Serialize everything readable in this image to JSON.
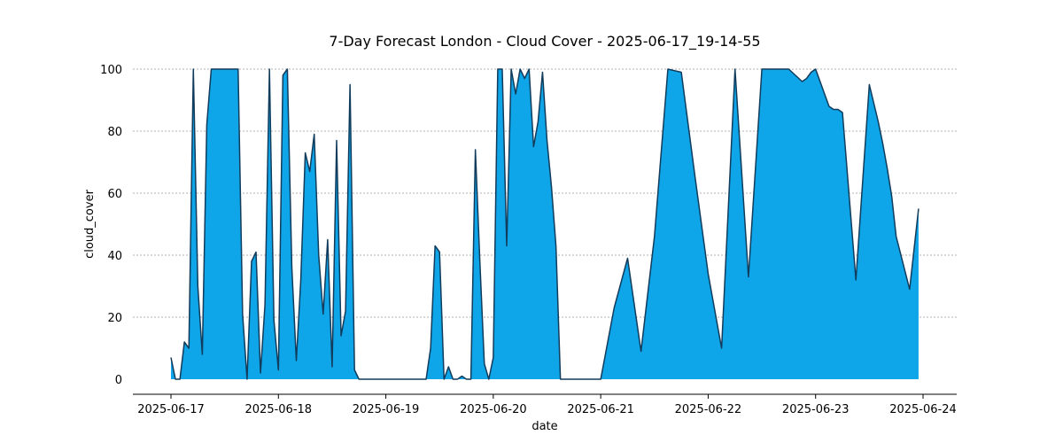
{
  "chart_data": {
    "type": "area",
    "title": "7-Day Forecast London - Cloud Cover - 2025-06-17_19-14-55",
    "xlabel": "date",
    "ylabel": "cloud_cover",
    "ylim": [
      0,
      100
    ],
    "yticks": [
      0,
      20,
      40,
      60,
      80,
      100
    ],
    "xlim": [
      "2025-06-17T00:00",
      "2025-06-24T00:00"
    ],
    "xticks": [
      "2025-06-17",
      "2025-06-18",
      "2025-06-19",
      "2025-06-20",
      "2025-06-21",
      "2025-06-22",
      "2025-06-23",
      "2025-06-24"
    ],
    "grid": "y",
    "legend": "none",
    "colors": {
      "fill": "#0ea5e9",
      "line": "#123c5c",
      "grid": "#999999"
    },
    "x": [
      "2025-06-17T00:00",
      "2025-06-17T01:00",
      "2025-06-17T02:00",
      "2025-06-17T03:00",
      "2025-06-17T04:00",
      "2025-06-17T05:00",
      "2025-06-17T06:00",
      "2025-06-17T07:00",
      "2025-06-17T08:00",
      "2025-06-17T09:00",
      "2025-06-17T10:00",
      "2025-06-17T11:00",
      "2025-06-17T12:00",
      "2025-06-17T13:00",
      "2025-06-17T14:00",
      "2025-06-17T15:00",
      "2025-06-17T16:00",
      "2025-06-17T17:00",
      "2025-06-17T18:00",
      "2025-06-17T19:00",
      "2025-06-17T20:00",
      "2025-06-17T21:00",
      "2025-06-17T22:00",
      "2025-06-17T23:00",
      "2025-06-18T00:00",
      "2025-06-18T01:00",
      "2025-06-18T02:00",
      "2025-06-18T03:00",
      "2025-06-18T04:00",
      "2025-06-18T05:00",
      "2025-06-18T06:00",
      "2025-06-18T07:00",
      "2025-06-18T08:00",
      "2025-06-18T09:00",
      "2025-06-18T10:00",
      "2025-06-18T11:00",
      "2025-06-18T12:00",
      "2025-06-18T13:00",
      "2025-06-18T14:00",
      "2025-06-18T15:00",
      "2025-06-18T16:00",
      "2025-06-18T17:00",
      "2025-06-18T18:00",
      "2025-06-18T19:00",
      "2025-06-18T20:00",
      "2025-06-18T21:00",
      "2025-06-18T22:00",
      "2025-06-18T23:00",
      "2025-06-19T00:00",
      "2025-06-19T01:00",
      "2025-06-19T02:00",
      "2025-06-19T03:00",
      "2025-06-19T04:00",
      "2025-06-19T05:00",
      "2025-06-19T06:00",
      "2025-06-19T07:00",
      "2025-06-19T08:00",
      "2025-06-19T09:00",
      "2025-06-19T10:00",
      "2025-06-19T11:00",
      "2025-06-19T12:00",
      "2025-06-19T13:00",
      "2025-06-19T14:00",
      "2025-06-19T15:00",
      "2025-06-19T16:00",
      "2025-06-19T17:00",
      "2025-06-19T18:00",
      "2025-06-19T19:00",
      "2025-06-19T20:00",
      "2025-06-19T21:00",
      "2025-06-19T22:00",
      "2025-06-19T23:00",
      "2025-06-20T00:00",
      "2025-06-20T01:00",
      "2025-06-20T02:00",
      "2025-06-20T03:00",
      "2025-06-20T04:00",
      "2025-06-20T05:00",
      "2025-06-20T06:00",
      "2025-06-20T07:00",
      "2025-06-20T08:00",
      "2025-06-20T09:00",
      "2025-06-20T10:00",
      "2025-06-20T11:00",
      "2025-06-20T12:00",
      "2025-06-20T13:00",
      "2025-06-20T14:00",
      "2025-06-20T15:00",
      "2025-06-20T16:00",
      "2025-06-20T17:00",
      "2025-06-20T18:00",
      "2025-06-20T19:00",
      "2025-06-20T20:00",
      "2025-06-20T21:00",
      "2025-06-20T22:00",
      "2025-06-20T23:00",
      "2025-06-21T00:00",
      "2025-06-21T03:00",
      "2025-06-21T06:00",
      "2025-06-21T09:00",
      "2025-06-21T12:00",
      "2025-06-21T15:00",
      "2025-06-21T18:00",
      "2025-06-21T21:00",
      "2025-06-22T00:00",
      "2025-06-22T03:00",
      "2025-06-22T06:00",
      "2025-06-22T09:00",
      "2025-06-22T12:00",
      "2025-06-22T15:00",
      "2025-06-22T18:00",
      "2025-06-22T21:00",
      "2025-06-22T22:00",
      "2025-06-22T23:00",
      "2025-06-23T00:00",
      "2025-06-23T03:00",
      "2025-06-23T04:00",
      "2025-06-23T05:00",
      "2025-06-23T06:00",
      "2025-06-23T09:00",
      "2025-06-23T12:00",
      "2025-06-23T13:00",
      "2025-06-23T14:00",
      "2025-06-23T15:00",
      "2025-06-23T16:00",
      "2025-06-23T17:00",
      "2025-06-23T18:00",
      "2025-06-23T21:00",
      "2025-06-23T23:00"
    ],
    "values": [
      7,
      0,
      0,
      12,
      10,
      100,
      30,
      8,
      82,
      100,
      100,
      100,
      100,
      100,
      100,
      100,
      21,
      0,
      38,
      41,
      2,
      24,
      100,
      19,
      3,
      98,
      100,
      36,
      6,
      32,
      73,
      67,
      79,
      40,
      21,
      45,
      4,
      77,
      14,
      22,
      95,
      3,
      0,
      0,
      0,
      0,
      0,
      0,
      0,
      0,
      0,
      0,
      0,
      0,
      0,
      0,
      0,
      0,
      10,
      43,
      41,
      0,
      4,
      0,
      0,
      1,
      0,
      0,
      74,
      38,
      5,
      0,
      7,
      100,
      100,
      43,
      100,
      92,
      100,
      97,
      100,
      75,
      83,
      99,
      77,
      62,
      43,
      0,
      0,
      0,
      0,
      0,
      0,
      0,
      0,
      0,
      0,
      23,
      39,
      9,
      46,
      100,
      99,
      66,
      34,
      10,
      100,
      33,
      100,
      100,
      100,
      96,
      97,
      99,
      100,
      88,
      87,
      87,
      86,
      32,
      95,
      89,
      83,
      76,
      68,
      59,
      46,
      29,
      55
    ]
  }
}
